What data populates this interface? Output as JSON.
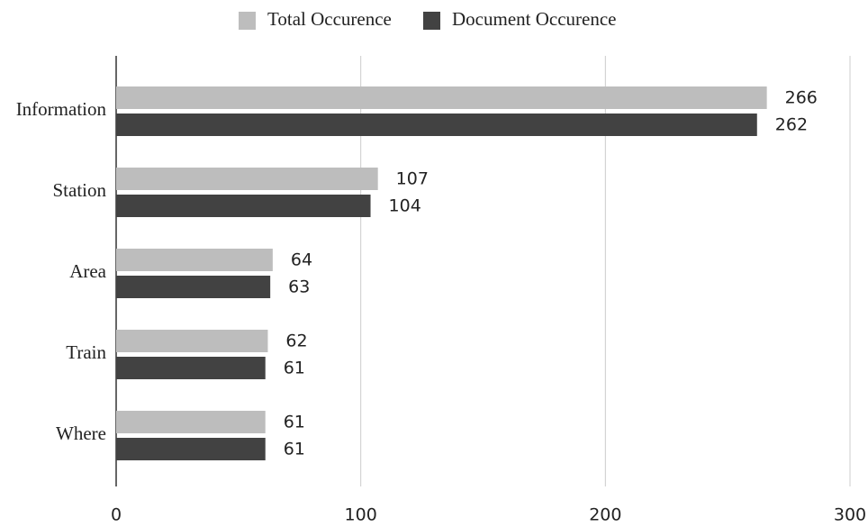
{
  "chart_data": {
    "type": "hbar",
    "categories": [
      "Information",
      "Station",
      "Area",
      "Train",
      "Where"
    ],
    "series": [
      {
        "name": "Total Occurence",
        "color": "#bdbdbd",
        "values": [
          266,
          107,
          64,
          62,
          61
        ]
      },
      {
        "name": "Document Occurence",
        "color": "#424242",
        "values": [
          262,
          104,
          63,
          61,
          61
        ]
      }
    ],
    "xlim": [
      0,
      300
    ],
    "xticks": [
      0,
      100,
      200,
      300
    ],
    "grid": true,
    "legend": "top"
  }
}
